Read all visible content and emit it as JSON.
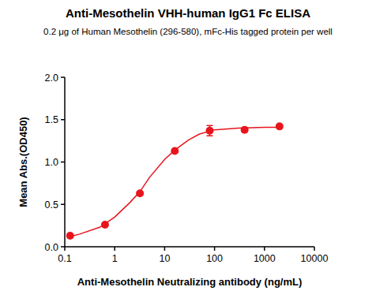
{
  "chart_data": {
    "type": "scatter",
    "title": "Anti-Mesothelin VHH-human IgG1 Fc ELISA",
    "subtitle": "0.2 μg of Human Mesothelin (296-580), mFc-His tagged protein per well",
    "x_label": "Anti-Mesothelin Neutralizing antibody (ng/mL)",
    "y_label": "Mean Abs.(OD450)",
    "log": "x",
    "grid": false,
    "xlim": [
      0.1,
      10000
    ],
    "xticks": [
      0.1,
      1,
      10,
      100,
      1000,
      10000
    ],
    "ylim": [
      0,
      2.0
    ],
    "yticks": [
      {
        "value": 0,
        "label": "0.0"
      },
      0.5,
      {
        "value": 1,
        "label": "1.0"
      },
      1.5,
      {
        "value": 2,
        "label": "2.0"
      }
    ],
    "series": [
      {
        "type": "scatter",
        "marker": "circle",
        "color": "#e8141c",
        "x": [
          0.128,
          0.64,
          3.2,
          16,
          80,
          400,
          2000
        ],
        "values": [
          0.13,
          0.26,
          0.63,
          1.13,
          1.37,
          1.38,
          1.42
        ],
        "errors": [
          0.01,
          0.01,
          0.02,
          0.02,
          0.06,
          0.02,
          0.02
        ]
      },
      {
        "type": "line",
        "line_style": "solid",
        "color": "#e8141c",
        "x": [
          0.128,
          0.2,
          0.5,
          1,
          2,
          3.2,
          5,
          10,
          16,
          30,
          50,
          100,
          300,
          1000,
          2000
        ],
        "values": [
          0.12,
          0.15,
          0.23,
          0.35,
          0.52,
          0.65,
          0.82,
          1.03,
          1.14,
          1.26,
          1.33,
          1.38,
          1.4,
          1.41,
          1.41
        ]
      }
    ]
  }
}
